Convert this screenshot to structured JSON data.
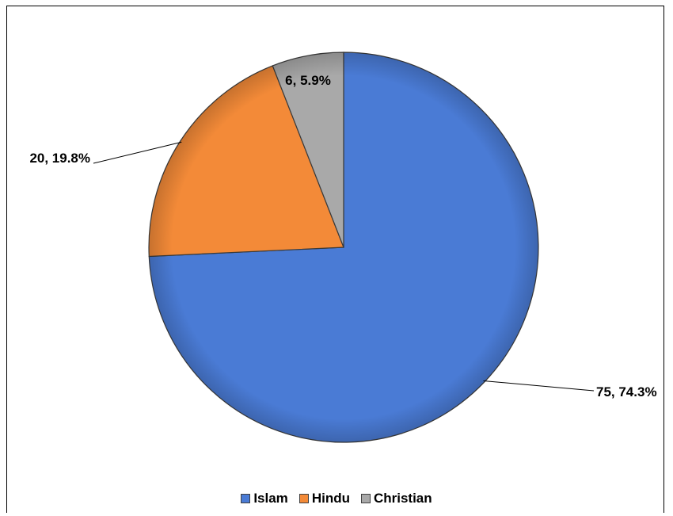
{
  "chart_data": {
    "type": "pie",
    "title": "",
    "slices": [
      {
        "name": "Islam",
        "value": 75,
        "percent": "74.3%",
        "label": "75, 74.3%",
        "color": "#4A7BD5"
      },
      {
        "name": "Hindu",
        "value": 20,
        "percent": "19.8%",
        "label": "20, 19.8%",
        "color": "#F38A38"
      },
      {
        "name": "Christian",
        "value": 6,
        "percent": "5.9%",
        "label": "6, 5.9%",
        "color": "#A9A9A9"
      }
    ],
    "start_angle": "12 o'clock, clockwise",
    "legend": {
      "position": "bottom",
      "items": [
        "Islam",
        "Hindu",
        "Christian"
      ]
    }
  }
}
